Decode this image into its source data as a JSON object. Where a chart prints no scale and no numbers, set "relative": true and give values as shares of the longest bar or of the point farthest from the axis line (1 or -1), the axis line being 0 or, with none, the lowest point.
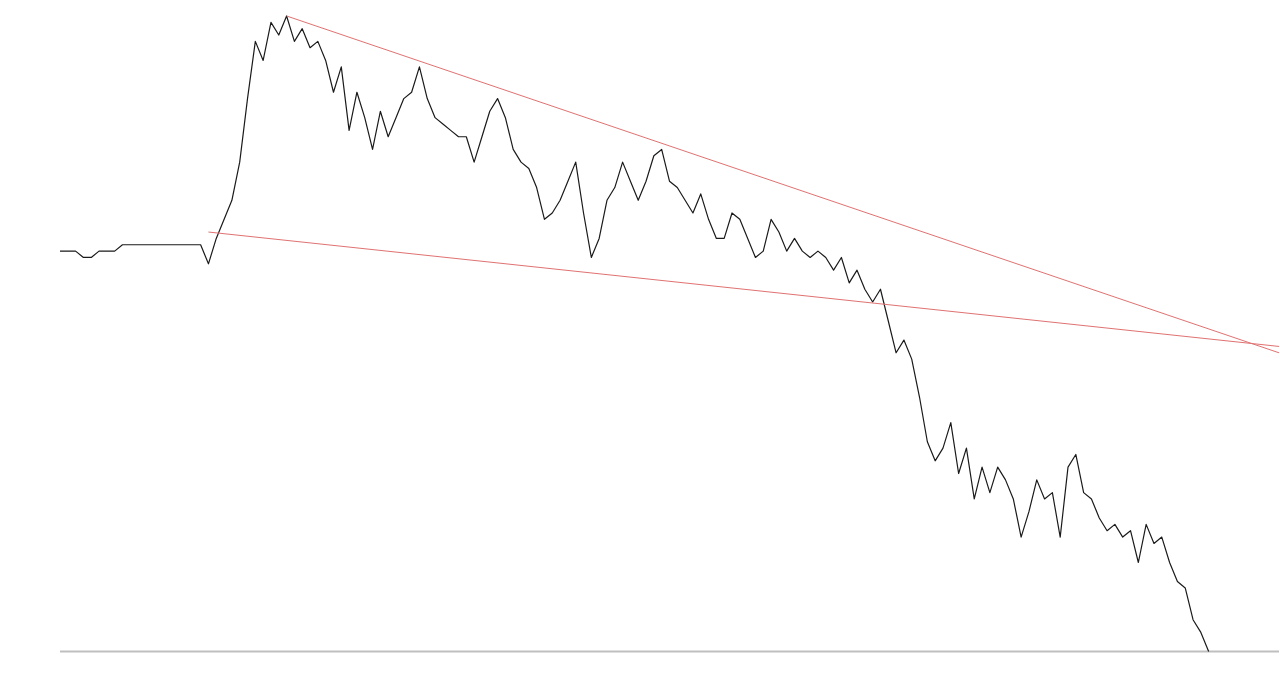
{
  "chart_data": {
    "type": "line",
    "relative": true,
    "categories": [
      null,
      null,
      null,
      null,
      null,
      null,
      null,
      null,
      null,
      null,
      null,
      null,
      null,
      null,
      null,
      null,
      null,
      null,
      null,
      null,
      null,
      null,
      null,
      null,
      null,
      null,
      null,
      null,
      null,
      null,
      null,
      null,
      null,
      null,
      null,
      null,
      null,
      null,
      null,
      null,
      null,
      null,
      null,
      null,
      null,
      null,
      null,
      null,
      null,
      null,
      null,
      null,
      null,
      null,
      null,
      null,
      null,
      null,
      null,
      null,
      null,
      null,
      null,
      null,
      null,
      null,
      null,
      null,
      null,
      null,
      null,
      null,
      null,
      null,
      null,
      null,
      null,
      null,
      null,
      null,
      null,
      null,
      null,
      null,
      null,
      null,
      null,
      null,
      null,
      null,
      null,
      null,
      null,
      null,
      null,
      null,
      null,
      null,
      null,
      null,
      null,
      null,
      null,
      null,
      null,
      null,
      null,
      null,
      null,
      null,
      null,
      null,
      null,
      null,
      null,
      null,
      null,
      null,
      null,
      null,
      null,
      null,
      null,
      null,
      null,
      null,
      null,
      null,
      null,
      null,
      null,
      null,
      null,
      null,
      null,
      null,
      null,
      null,
      null,
      null,
      null,
      null,
      null,
      null,
      null,
      null,
      null,
      null,
      null,
      null,
      null,
      null,
      null,
      null,
      null,
      null,
      null
    ],
    "series": [
      {
        "color": "#1a1a1a",
        "values": [
          0.63,
          0.63,
          0.63,
          0.62,
          0.62,
          0.63,
          0.63,
          0.63,
          0.64,
          0.64,
          0.64,
          0.64,
          0.64,
          0.64,
          0.64,
          0.64,
          0.64,
          0.64,
          0.64,
          0.61,
          0.65,
          0.68,
          0.71,
          0.77,
          0.87,
          0.96,
          0.93,
          0.99,
          0.97,
          1.0,
          0.96,
          0.98,
          0.95,
          0.96,
          0.93,
          0.88,
          0.92,
          0.82,
          0.88,
          0.84,
          0.79,
          0.85,
          0.81,
          0.84,
          0.87,
          0.88,
          0.92,
          0.87,
          0.84,
          0.83,
          0.82,
          0.81,
          0.81,
          0.77,
          0.81,
          0.85,
          0.87,
          0.84,
          0.79,
          0.77,
          0.76,
          0.73,
          0.68,
          0.69,
          0.71,
          0.74,
          0.77,
          0.69,
          0.62,
          0.65,
          0.71,
          0.73,
          0.77,
          0.74,
          0.71,
          0.74,
          0.78,
          0.79,
          0.74,
          0.73,
          0.71,
          0.69,
          0.72,
          0.68,
          0.65,
          0.65,
          0.69,
          0.68,
          0.65,
          0.62,
          0.63,
          0.68,
          0.66,
          0.63,
          0.65,
          0.63,
          0.62,
          0.63,
          0.62,
          0.6,
          0.62,
          0.58,
          0.6,
          0.57,
          0.55,
          0.57,
          0.52,
          0.47,
          0.49,
          0.46,
          0.4,
          0.33,
          0.3,
          0.32,
          0.36,
          0.28,
          0.32,
          0.24,
          0.29,
          0.25,
          0.29,
          0.27,
          0.24,
          0.18,
          0.22,
          0.27,
          0.24,
          0.25,
          0.18,
          0.29,
          0.31,
          0.25,
          0.24,
          0.21,
          0.19,
          0.2,
          0.18,
          0.19,
          0.14,
          0.2,
          0.17,
          0.18,
          0.14,
          0.11,
          0.1,
          0.05,
          0.03,
          0.0,
          null,
          null,
          null,
          null,
          null,
          null,
          null,
          null,
          null
        ]
      },
      {
        "color": "#e07070",
        "values": [
          null,
          null,
          null,
          null,
          null,
          null,
          null,
          null,
          null,
          null,
          null,
          null,
          null,
          null,
          null,
          null,
          null,
          null,
          null,
          null,
          null,
          null,
          null,
          null,
          null,
          null,
          null,
          null,
          null,
          1.0,
          null,
          null,
          null,
          null,
          null,
          null,
          null,
          null,
          null,
          null,
          null,
          null,
          null,
          null,
          null,
          null,
          null,
          null,
          null,
          null,
          null,
          null,
          null,
          null,
          null,
          null,
          null,
          null,
          null,
          null,
          null,
          null,
          null,
          null,
          null,
          null,
          null,
          null,
          null,
          null,
          null,
          null,
          null,
          null,
          null,
          null,
          null,
          null,
          null,
          null,
          null,
          null,
          null,
          null,
          null,
          null,
          null,
          null,
          null,
          null,
          null,
          null,
          null,
          null,
          null,
          null,
          null,
          null,
          null,
          null,
          null,
          null,
          null,
          null,
          null,
          null,
          null,
          null,
          null,
          null,
          null,
          null,
          null,
          null,
          null,
          null,
          null,
          null,
          null,
          null,
          null,
          null,
          null,
          null,
          null,
          null,
          null,
          null,
          null,
          null,
          null,
          null,
          null,
          null,
          null,
          null,
          null,
          null,
          null,
          null,
          null,
          null,
          null,
          null,
          null,
          null,
          null,
          null,
          null,
          null,
          null,
          null,
          null,
          null,
          null,
          null,
          0.47
        ]
      },
      {
        "color": "#e07070",
        "values": [
          null,
          null,
          null,
          null,
          null,
          null,
          null,
          null,
          null,
          null,
          null,
          null,
          null,
          null,
          null,
          null,
          null,
          null,
          null,
          0.66,
          null,
          null,
          null,
          null,
          null,
          null,
          null,
          null,
          null,
          null,
          null,
          null,
          null,
          null,
          null,
          null,
          null,
          null,
          null,
          null,
          null,
          null,
          null,
          null,
          null,
          null,
          null,
          null,
          null,
          null,
          null,
          null,
          null,
          null,
          null,
          null,
          null,
          null,
          null,
          null,
          null,
          null,
          null,
          null,
          null,
          null,
          null,
          null,
          null,
          null,
          null,
          null,
          null,
          null,
          null,
          null,
          null,
          null,
          null,
          null,
          null,
          null,
          null,
          null,
          null,
          null,
          null,
          null,
          null,
          null,
          null,
          null,
          null,
          null,
          null,
          null,
          null,
          null,
          null,
          null,
          null,
          null,
          null,
          null,
          null,
          null,
          null,
          null,
          null,
          null,
          null,
          null,
          null,
          null,
          null,
          null,
          null,
          null,
          null,
          null,
          null,
          null,
          null,
          null,
          null,
          null,
          null,
          null,
          null,
          null,
          null,
          null,
          null,
          null,
          null,
          null,
          null,
          null,
          null,
          null,
          null,
          null,
          null,
          null,
          null,
          null,
          null,
          null,
          null,
          null,
          null,
          null,
          null,
          null,
          null,
          null,
          0.48
        ]
      }
    ]
  }
}
